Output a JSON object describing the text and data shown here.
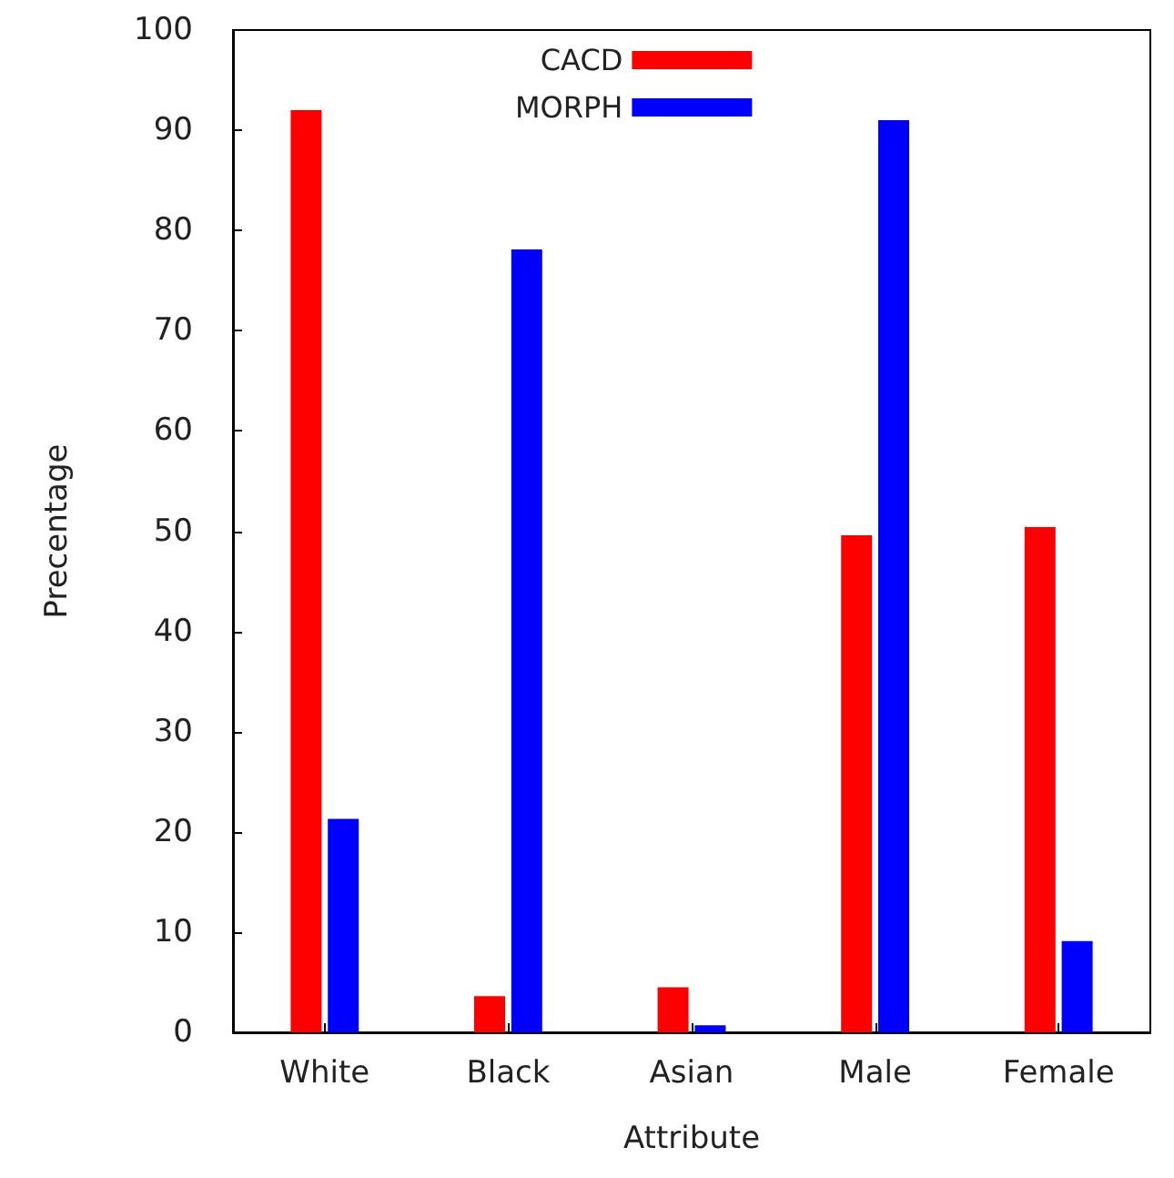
{
  "chart_data": {
    "type": "bar",
    "xlabel": "Attribute",
    "ylabel": "Precentage",
    "categories": [
      "White",
      "Black",
      "Asian",
      "Male",
      "Female"
    ],
    "series": [
      {
        "name": "CACD",
        "color": "#ff0000",
        "values": [
          92,
          3.6,
          4.5,
          49.6,
          50.4
        ]
      },
      {
        "name": "MORPH",
        "color": "#0000ff",
        "values": [
          21.3,
          78.1,
          0.7,
          91,
          9.1
        ]
      }
    ],
    "ylim": [
      0,
      100
    ],
    "yticks": [
      0,
      10,
      20,
      30,
      40,
      50,
      60,
      70,
      80,
      90,
      100
    ],
    "grid": false,
    "legend": "top"
  }
}
